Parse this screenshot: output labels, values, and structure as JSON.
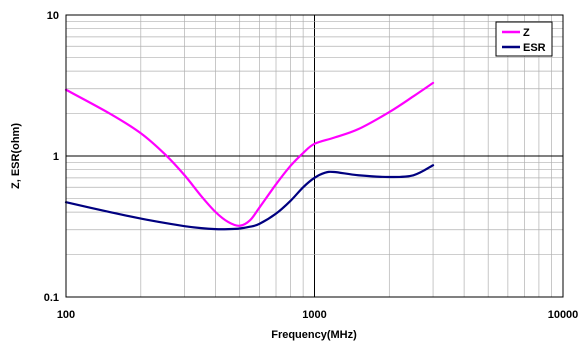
{
  "chart_data": {
    "type": "line",
    "title": "",
    "xlabel": "Frequency(MHz)",
    "ylabel": "Z, ESR(ohm)",
    "xscale": "log",
    "yscale": "log",
    "xlim": [
      100,
      10000
    ],
    "ylim": [
      0.1,
      10
    ],
    "x_ticks": [
      100,
      1000,
      10000
    ],
    "x_tick_labels": [
      "100",
      "1000",
      "10000"
    ],
    "y_ticks": [
      0.1,
      1,
      10
    ],
    "y_tick_labels": [
      "0.1",
      "1",
      "10"
    ],
    "grid": true,
    "legend_position": "top-right",
    "series": [
      {
        "name": "Z",
        "color": "#ff00ff",
        "x": [
          100,
          150,
          200,
          250,
          300,
          350,
          400,
          450,
          500,
          550,
          600,
          700,
          800,
          900,
          1000,
          1200,
          1500,
          2000,
          2500,
          3000
        ],
        "y": [
          2.95,
          2.0,
          1.45,
          1.03,
          0.73,
          0.52,
          0.4,
          0.34,
          0.32,
          0.35,
          0.43,
          0.63,
          0.85,
          1.05,
          1.22,
          1.35,
          1.55,
          2.05,
          2.65,
          3.3
        ]
      },
      {
        "name": "ESR",
        "color": "#000080",
        "x": [
          100,
          150,
          200,
          250,
          300,
          350,
          400,
          450,
          500,
          550,
          600,
          700,
          800,
          900,
          1000,
          1100,
          1200,
          1500,
          2000,
          2500,
          3000
        ],
        "y": [
          0.47,
          0.4,
          0.36,
          0.335,
          0.318,
          0.308,
          0.303,
          0.303,
          0.306,
          0.315,
          0.33,
          0.39,
          0.48,
          0.6,
          0.7,
          0.76,
          0.77,
          0.73,
          0.71,
          0.73,
          0.86
        ]
      }
    ]
  }
}
